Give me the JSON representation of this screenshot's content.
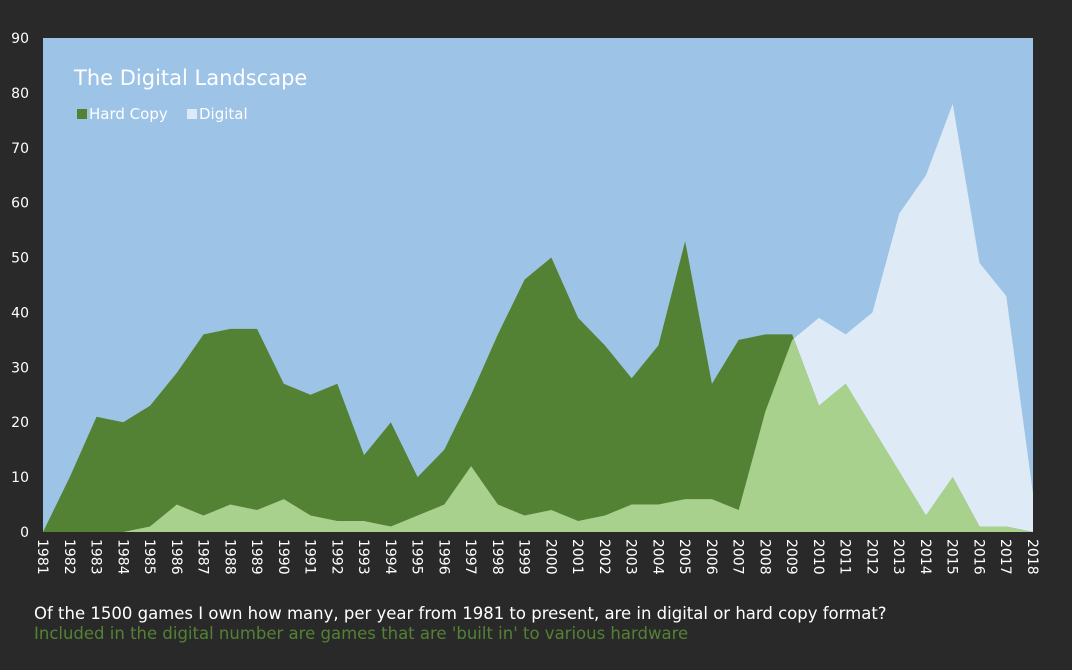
{
  "colors": {
    "background": "#292929",
    "plot_bg": "#9dc3e6",
    "hard_copy": "#548235",
    "digital": "#deebf7",
    "overlap": "#a9d18e",
    "text": "#ffffff",
    "subcaption": "#548235"
  },
  "chart_data": {
    "type": "area",
    "title": "The Digital Landscape",
    "xlabel": "",
    "ylabel": "",
    "ylim": [
      0,
      90
    ],
    "yticks": [
      0,
      10,
      20,
      30,
      40,
      50,
      60,
      70,
      80,
      90
    ],
    "grid": false,
    "legend_position": "top-left",
    "categories": [
      "1981",
      "1982",
      "1983",
      "1984",
      "1985",
      "1986",
      "1987",
      "1988",
      "1989",
      "1990",
      "1991",
      "1992",
      "1993",
      "1994",
      "1995",
      "1996",
      "1997",
      "1998",
      "1999",
      "2000",
      "2001",
      "2002",
      "2003",
      "2004",
      "2005",
      "2006",
      "2007",
      "2008",
      "2009",
      "2010",
      "2011",
      "2012",
      "2013",
      "2014",
      "2015",
      "2016",
      "2017",
      "2018"
    ],
    "series": [
      {
        "name": "Hard Copy",
        "values": [
          0,
          10,
          21,
          20,
          23,
          29,
          36,
          37,
          37,
          27,
          25,
          27,
          14,
          20,
          10,
          15,
          25,
          36,
          46,
          50,
          39,
          34,
          28,
          34,
          53,
          27,
          35,
          36,
          36,
          23,
          27,
          19,
          11,
          3,
          10,
          1,
          1,
          0
        ]
      },
      {
        "name": "Digital",
        "values": [
          0,
          0,
          0,
          0,
          1,
          5,
          3,
          5,
          4,
          6,
          3,
          2,
          2,
          1,
          3,
          5,
          12,
          5,
          3,
          4,
          2,
          3,
          5,
          5,
          6,
          6,
          4,
          22,
          35,
          39,
          36,
          40,
          58,
          65,
          78,
          49,
          43,
          7
        ]
      }
    ]
  },
  "captions": {
    "main": "Of the 1500 games I own how many, per year from 1981 to present, are in digital or hard copy format?",
    "sub": "Included in the digital number are games that are 'built in' to various hardware"
  }
}
